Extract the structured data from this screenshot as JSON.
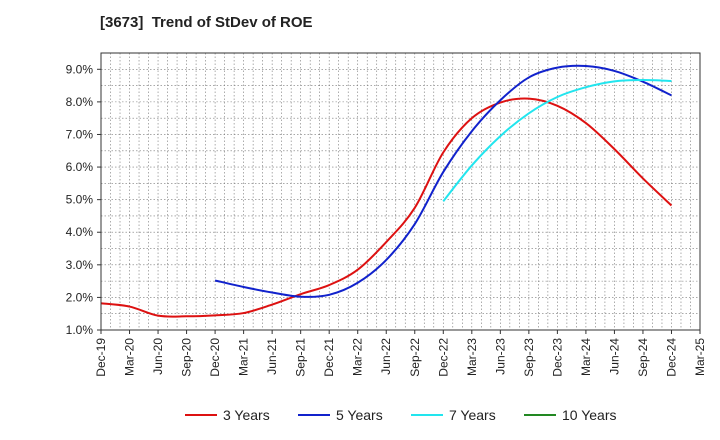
{
  "chart_data": {
    "type": "line",
    "title": "[3673]  Trend of StDev of ROE",
    "x_ticks": [
      "Dec-19",
      "Mar-20",
      "Jun-20",
      "Sep-20",
      "Dec-20",
      "Mar-21",
      "Jun-21",
      "Sep-21",
      "Dec-21",
      "Mar-22",
      "Jun-22",
      "Sep-22",
      "Dec-22",
      "Mar-23",
      "Jun-23",
      "Sep-23",
      "Dec-23",
      "Mar-24",
      "Jun-24",
      "Sep-24",
      "Dec-24",
      "Mar-25"
    ],
    "y_ticks": [
      "1.0%",
      "2.0%",
      "3.0%",
      "4.0%",
      "5.0%",
      "6.0%",
      "7.0%",
      "8.0%",
      "9.0%"
    ],
    "ylim": [
      1.0,
      9.5
    ],
    "grid": true,
    "legend_position": "bottom",
    "colors": {
      "3 Years": "#dd1111",
      "5 Years": "#1122cc",
      "7 Years": "#22e5ee",
      "10 Years": "#228822"
    },
    "series": [
      {
        "name": "3 Years",
        "start_index": 0,
        "values": [
          1.82,
          1.72,
          1.44,
          1.42,
          1.45,
          1.52,
          1.78,
          2.1,
          2.38,
          2.85,
          3.7,
          4.75,
          6.45,
          7.5,
          7.98,
          8.1,
          7.88,
          7.35,
          6.55,
          5.65,
          4.82
        ]
      },
      {
        "name": "5 Years",
        "start_index": 4,
        "values": [
          2.52,
          2.32,
          2.15,
          2.02,
          2.08,
          2.45,
          3.15,
          4.25,
          5.85,
          7.1,
          8.05,
          8.75,
          9.05,
          9.1,
          8.95,
          8.62,
          8.2
        ]
      },
      {
        "name": "7 Years",
        "start_index": 12,
        "values": [
          4.95,
          6.05,
          6.95,
          7.65,
          8.15,
          8.45,
          8.63,
          8.67,
          8.64
        ]
      },
      {
        "name": "10 Years",
        "start_index": 0,
        "values": []
      }
    ]
  }
}
